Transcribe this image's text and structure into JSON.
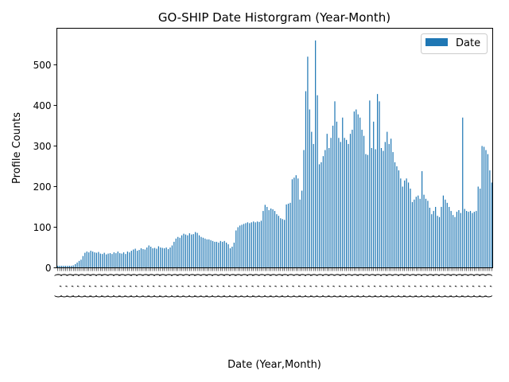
{
  "chart_data": {
    "type": "bar",
    "title": "GO-SHIP Date Historgram (Year-Month)",
    "xlabel": "Date (Year,Month)",
    "ylabel": "Profile Counts",
    "ylim": [
      0,
      590
    ],
    "yticks": [
      0,
      100,
      200,
      300,
      400,
      500
    ],
    "legend": {
      "position": "top-right",
      "entries": [
        "Date"
      ]
    },
    "grid": false,
    "colors": {
      "bar": "#1f77b4"
    },
    "categories_note": "x tick labels are (Year, Month) tuples, rotated 90°, overlapping and illegible",
    "series": [
      {
        "name": "Date",
        "values": [
          5,
          5,
          5,
          5,
          5,
          5,
          5,
          5,
          6,
          9,
          13,
          17,
          20,
          29,
          37,
          40,
          38,
          42,
          40,
          38,
          37,
          39,
          35,
          34,
          37,
          33,
          35,
          36,
          34,
          38,
          36,
          40,
          36,
          35,
          38,
          34,
          40,
          38,
          42,
          45,
          47,
          42,
          44,
          48,
          46,
          45,
          50,
          55,
          52,
          48,
          49,
          47,
          53,
          50,
          49,
          48,
          50,
          46,
          50,
          55,
          64,
          72,
          76,
          74,
          80,
          84,
          82,
          80,
          85,
          82,
          83,
          88,
          86,
          80,
          76,
          74,
          72,
          70,
          70,
          68,
          66,
          64,
          64,
          62,
          66,
          64,
          66,
          62,
          58,
          48,
          52,
          62,
          92,
          100,
          104,
          106,
          108,
          110,
          112,
          110,
          112,
          114,
          112,
          114,
          113,
          116,
          140,
          155,
          150,
          142,
          146,
          144,
          140,
          132,
          128,
          122,
          120,
          118,
          156,
          158,
          160,
          218,
          222,
          228,
          220,
          168,
          190,
          290,
          435,
          520,
          390,
          335,
          305,
          560,
          425,
          255,
          260,
          275,
          290,
          330,
          295,
          320,
          350,
          410,
          360,
          320,
          310,
          370,
          320,
          315,
          305,
          330,
          340,
          385,
          390,
          378,
          370,
          340,
          325,
          280,
          278,
          412,
          295,
          360,
          292,
          428,
          410,
          295,
          288,
          310,
          335,
          305,
          318,
          285,
          260,
          250,
          240,
          220,
          200,
          215,
          220,
          210,
          195,
          162,
          168,
          175,
          178,
          170,
          238,
          180,
          170,
          165,
          148,
          132,
          140,
          150,
          128,
          125,
          150,
          178,
          168,
          160,
          150,
          140,
          130,
          125,
          138,
          142,
          135,
          370,
          145,
          140,
          138,
          140,
          135,
          138,
          140,
          200,
          195,
          300,
          298,
          290,
          280,
          240,
          210
        ]
      }
    ]
  }
}
